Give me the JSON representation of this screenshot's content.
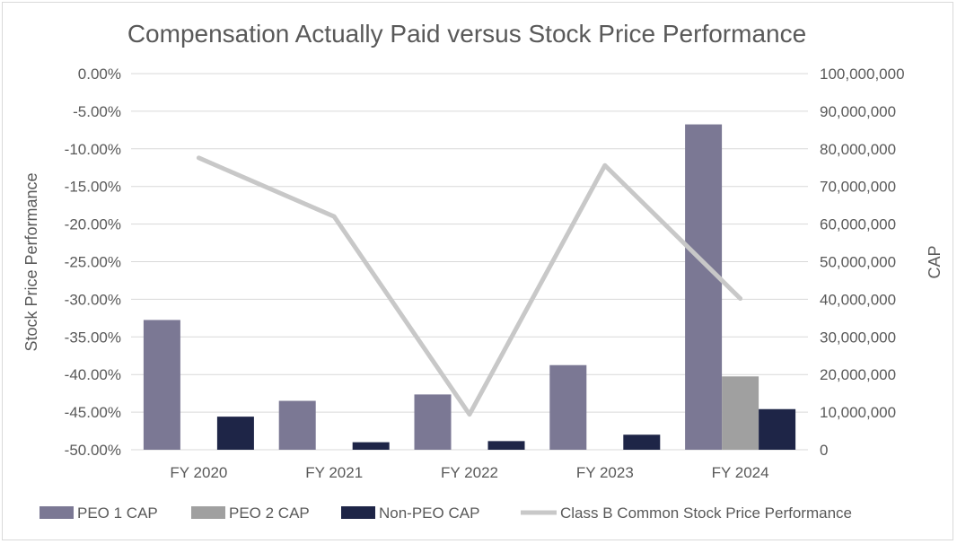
{
  "chart_data": {
    "type": "bar",
    "title": "Compensation Actually Paid versus Stock Price Performance",
    "categories": [
      "FY 2020",
      "FY 2021",
      "FY 2022",
      "FY 2023",
      "FY 2024"
    ],
    "y_left": {
      "label": "Stock Price Performance",
      "ylim": [
        -50,
        0
      ],
      "ticks": [
        "0.00%",
        "-5.00%",
        "-10.00%",
        "-15.00%",
        "-20.00%",
        "-25.00%",
        "-30.00%",
        "-35.00%",
        "-40.00%",
        "-45.00%",
        "-50.00%"
      ]
    },
    "y_right": {
      "label": "CAP",
      "ylim": [
        0,
        100000000
      ],
      "ticks": [
        "100,000,000",
        "90,000,000",
        "80,000,000",
        "70,000,000",
        "60,000,000",
        "50,000,000",
        "40,000,000",
        "30,000,000",
        "20,000,000",
        "10,000,000",
        "0"
      ]
    },
    "series": [
      {
        "name": "PEO 1 CAP",
        "type": "bar",
        "axis": "right",
        "color": "#7b7894",
        "values": [
          34500000,
          13000000,
          14700000,
          22500000,
          86500000
        ]
      },
      {
        "name": "PEO 2 CAP",
        "type": "bar",
        "axis": "right",
        "color": "#a0a0a0",
        "values": [
          null,
          null,
          null,
          null,
          19500000
        ]
      },
      {
        "name": "Non-PEO CAP",
        "type": "bar",
        "axis": "right",
        "color": "#1e2547",
        "values": [
          8800000,
          2000000,
          2300000,
          4000000,
          10800000
        ]
      },
      {
        "name": "Class B Common Stock Price Performance",
        "type": "line",
        "axis": "left",
        "color": "#c8c8c8",
        "values": [
          -11.2,
          -19.0,
          -45.3,
          -12.2,
          -29.9
        ]
      }
    ],
    "grid": true,
    "legend": "bottom"
  }
}
